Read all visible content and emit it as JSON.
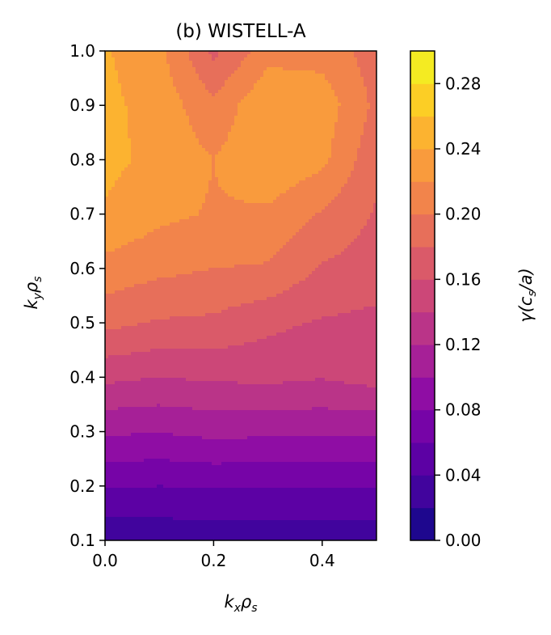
{
  "chart_data": {
    "type": "heatmap",
    "title": "(b) WISTELL-A",
    "xlabel_main": "k",
    "xlabel_sub1": "x",
    "xlabel_mid": "ρ",
    "xlabel_sub2": "s",
    "ylabel_main": "k",
    "ylabel_sub1": "y",
    "ylabel_mid": "ρ",
    "ylabel_sub2": "s",
    "colorbar_label_pre": "γ(c",
    "colorbar_label_sub": "s",
    "colorbar_label_post": "/a)",
    "xlim": [
      0.0,
      0.5
    ],
    "ylim": [
      0.1,
      1.0
    ],
    "x_ticks": [
      "0.0",
      "0.2",
      "0.4"
    ],
    "x_tick_values": [
      0.0,
      0.2,
      0.4
    ],
    "y_ticks": [
      "0.1",
      "0.2",
      "0.3",
      "0.4",
      "0.5",
      "0.6",
      "0.7",
      "0.8",
      "0.9",
      "1.0"
    ],
    "y_tick_values": [
      0.1,
      0.2,
      0.3,
      0.4,
      0.5,
      0.6,
      0.7,
      0.8,
      0.9,
      1.0
    ],
    "colorbar_ticks": [
      "0.00",
      "0.04",
      "0.08",
      "0.12",
      "0.16",
      "0.20",
      "0.24",
      "0.28"
    ],
    "colorbar_tick_values": [
      0.0,
      0.04,
      0.08,
      0.12,
      0.16,
      0.2,
      0.24,
      0.28
    ],
    "color_range": [
      0.0,
      0.3
    ],
    "color_levels": 15,
    "colormap": "plasma",
    "x": [
      0.0,
      0.1,
      0.2,
      0.3,
      0.4,
      0.5
    ],
    "y": [
      0.1,
      0.2,
      0.3,
      0.4,
      0.5,
      0.6,
      0.7,
      0.8,
      0.9,
      1.0
    ],
    "z": [
      [
        0.025,
        0.026,
        0.027,
        0.026,
        0.026,
        0.026
      ],
      [
        0.062,
        0.06,
        0.062,
        0.061,
        0.061,
        0.061
      ],
      [
        0.103,
        0.101,
        0.106,
        0.104,
        0.104,
        0.104
      ],
      [
        0.145,
        0.14,
        0.143,
        0.145,
        0.141,
        0.148
      ],
      [
        0.186,
        0.178,
        0.176,
        0.165,
        0.158,
        0.155
      ],
      [
        0.213,
        0.205,
        0.2,
        0.198,
        0.178,
        0.17
      ],
      [
        0.238,
        0.225,
        0.218,
        0.216,
        0.198,
        0.178
      ],
      [
        0.245,
        0.235,
        0.22,
        0.238,
        0.225,
        0.185
      ],
      [
        0.245,
        0.232,
        0.205,
        0.238,
        0.232,
        0.195
      ],
      [
        0.242,
        0.226,
        0.175,
        0.212,
        0.212,
        0.19
      ]
    ]
  }
}
